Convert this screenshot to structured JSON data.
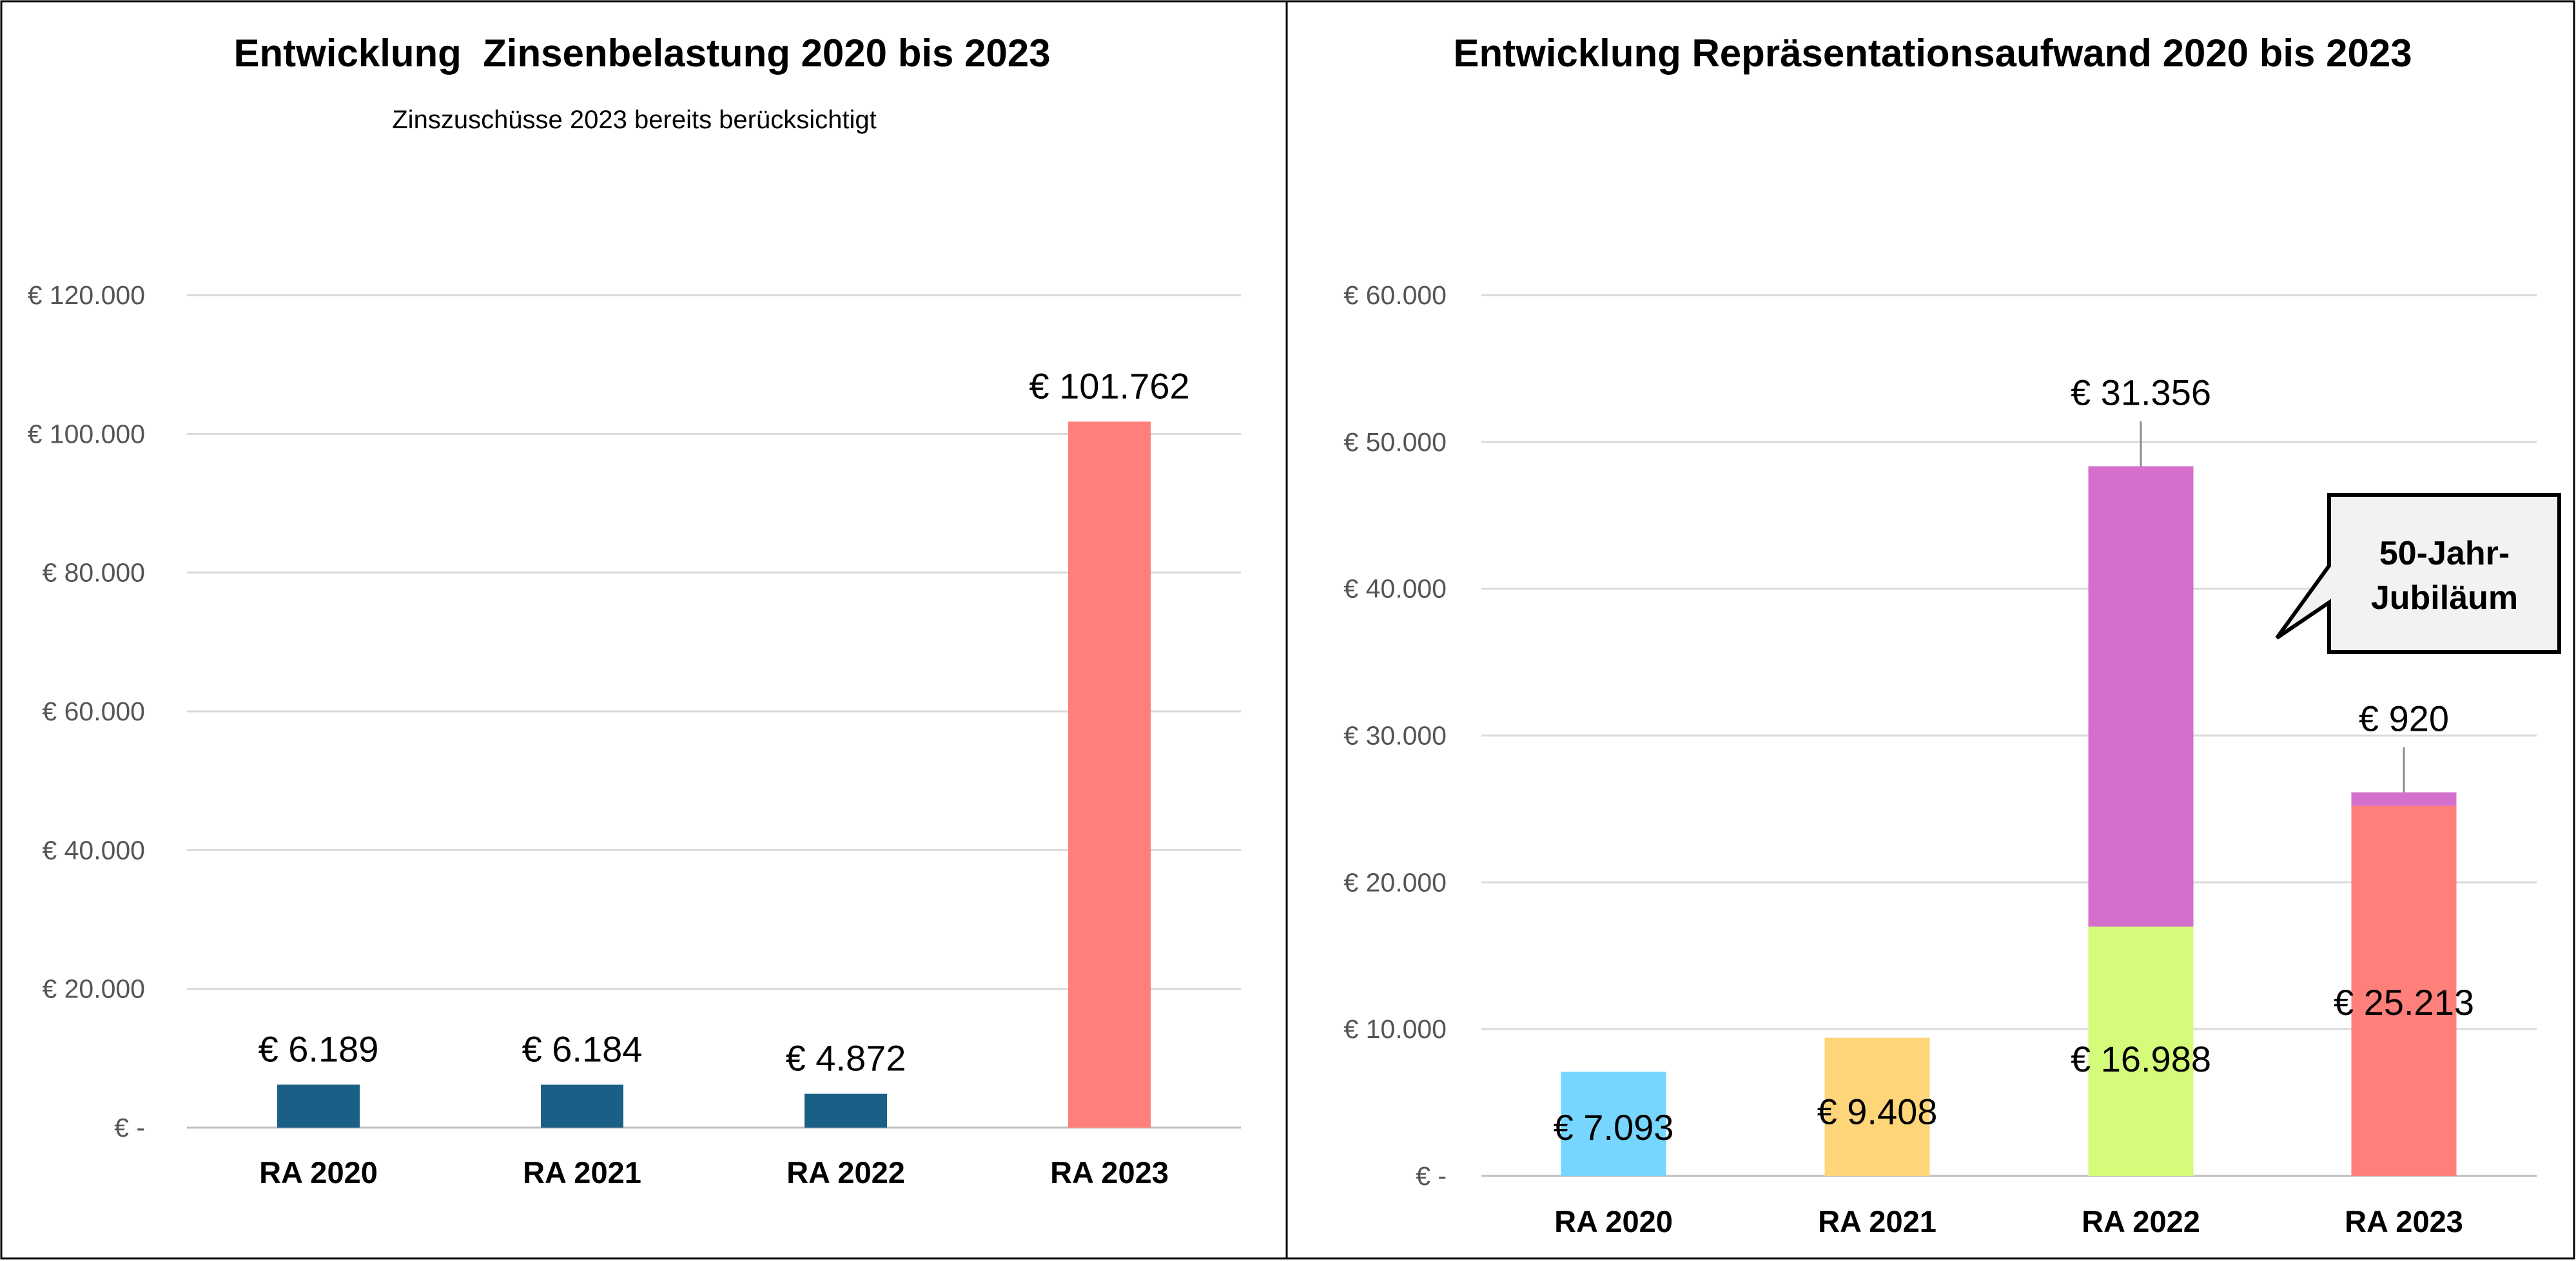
{
  "chart_data": [
    {
      "type": "bar",
      "title": "Entwicklung  Zinsenbelastung 2020 bis 2023",
      "subtitle": "Zinszuschüsse 2023 bereits berücksichtigt",
      "categories": [
        "RA 2020",
        "RA 2021",
        "RA 2022",
        "RA 2023"
      ],
      "values": [
        6189,
        6184,
        4872,
        101762
      ],
      "value_labels": [
        "€ 6.189",
        "€ 6.184",
        "€ 4.872",
        "€ 101.762"
      ],
      "bar_colors": [
        "#1a5f85",
        "#1a5f85",
        "#1a5f85",
        "#ff7f7a"
      ],
      "ylim": [
        0,
        120000
      ],
      "yticks": [
        0,
        20000,
        40000,
        60000,
        80000,
        100000,
        120000
      ],
      "ytick_labels": [
        "€ -",
        "€ 20.000",
        "€ 40.000",
        "€ 60.000",
        "€ 80.000",
        "€ 100.000",
        "€ 120.000"
      ],
      "grid": true
    },
    {
      "type": "bar",
      "stacked": true,
      "title": "Entwicklung Repräsentationsaufwand 2020 bis 2023",
      "categories": [
        "RA 2020",
        "RA 2021",
        "RA 2022",
        "RA 2023"
      ],
      "stacks": [
        [
          {
            "value": 7093,
            "label": "€ 7.093",
            "color": "#76d6ff"
          }
        ],
        [
          {
            "value": 9408,
            "label": "€ 9.408",
            "color": "#ffd579"
          }
        ],
        [
          {
            "value": 16988,
            "label": "€ 16.988",
            "color": "#d4fb79"
          },
          {
            "value": 31356,
            "label": "€ 31.356",
            "color": "#d56fcc"
          }
        ],
        [
          {
            "value": 25213,
            "label": "€ 25.213",
            "color": "#ff7f7a"
          },
          {
            "value": 920,
            "label": "€ 920",
            "color": "#d56fcc"
          }
        ]
      ],
      "ylim": [
        0,
        60000
      ],
      "yticks": [
        0,
        10000,
        20000,
        30000,
        40000,
        50000,
        60000
      ],
      "ytick_labels": [
        "€ -",
        "€ 10.000",
        "€ 20.000",
        "€ 30.000",
        "€ 40.000",
        "€ 50.000",
        "€ 60.000"
      ],
      "grid": true,
      "annotation": {
        "line1": "50-Jahr-",
        "line2": "Jubiläum"
      }
    }
  ]
}
